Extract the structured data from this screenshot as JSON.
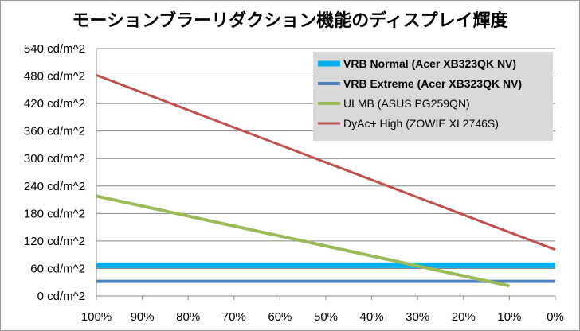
{
  "chart_data": {
    "type": "line",
    "title": "モーションブラーリダクション機能のディスプレイ輝度",
    "xlabel": "",
    "ylabel": "",
    "x_categories": [
      "100%",
      "90%",
      "80%",
      "70%",
      "60%",
      "50%",
      "40%",
      "30%",
      "20%",
      "10%",
      "0%"
    ],
    "y_ticks": [
      "0 cd/m^2",
      "60 cd/m^2",
      "120 cd/m^2",
      "180 cd/m^2",
      "240 cd/m^2",
      "300 cd/m^2",
      "360 cd/m^2",
      "420 cd/m^2",
      "480 cd/m^2",
      "540 cd/m^2"
    ],
    "ylim": [
      0,
      540
    ],
    "grid": "horizontal",
    "legend_position": "top-right",
    "series": [
      {
        "name": "VRB Normal (Acer XB323QK NV)",
        "color": "#00b0f0",
        "bold": true,
        "width": 7,
        "x": [
          100,
          0
        ],
        "y": [
          67,
          67
        ]
      },
      {
        "name": "VRB Extreme (Acer XB323QK NV)",
        "color": "#4f81bd",
        "bold": true,
        "width": 4,
        "x": [
          100,
          0
        ],
        "y": [
          32,
          32
        ]
      },
      {
        "name": "ULMB (ASUS PG259QN)",
        "color": "#9bbb59",
        "bold": false,
        "width": 4,
        "x": [
          100,
          10
        ],
        "y": [
          218,
          22
        ]
      },
      {
        "name": "DyAc+ High (ZOWIE XL2746S)",
        "color": "#c0504d",
        "bold": false,
        "width": 3,
        "x": [
          100,
          0
        ],
        "y": [
          482,
          101
        ]
      }
    ]
  }
}
